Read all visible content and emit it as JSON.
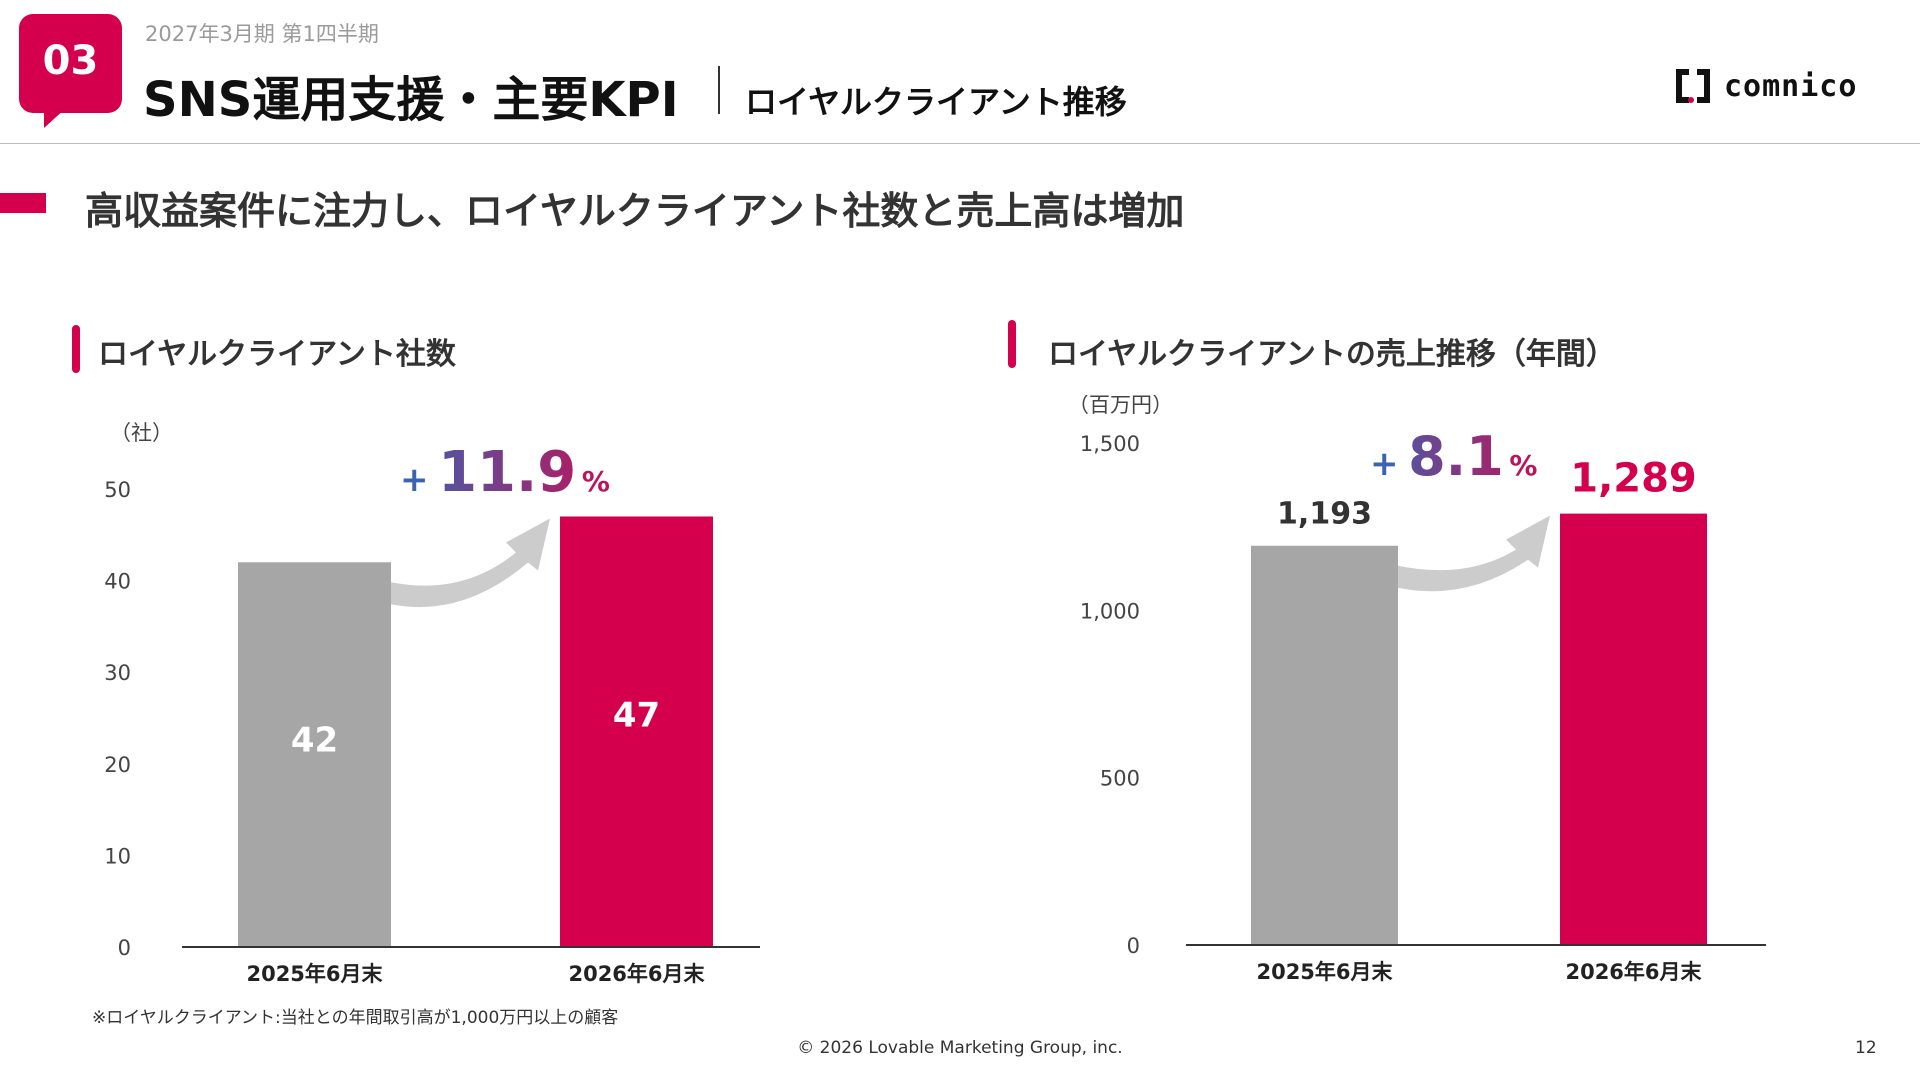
{
  "header": {
    "section_number": "03",
    "period": "2027年3月期 第1四半期",
    "title": "SNS運用支援・主要KPI",
    "subtitle": "ロイヤルクライアント推移",
    "logo_text": "comnico"
  },
  "headline": "高収益案件に注力し、ロイヤルクライアント社数と売上高は増加",
  "colors": {
    "accent": "#d4004d",
    "gray_bar": "#a6a6a6",
    "arrow": "#cccccc",
    "growth_start": "#3b63b0",
    "growth_end": "#c0125a"
  },
  "chart_data": [
    {
      "type": "bar",
      "title": "ロイヤルクライアント社数",
      "unit_label": "（社）",
      "categories": [
        "2025年6月末",
        "2026年6月末"
      ],
      "values": [
        42,
        47
      ],
      "value_labels": [
        "42",
        "47"
      ],
      "ylim": [
        0,
        50
      ],
      "yticks": [
        0,
        10,
        20,
        30,
        40,
        50
      ],
      "ytick_labels": [
        "0",
        "10",
        "20",
        "30",
        "40",
        "50"
      ],
      "growth": {
        "sign": "+",
        "number": "11.9",
        "unit": "%"
      },
      "bar_colors": [
        "#a6a6a6",
        "#d4004d"
      ],
      "labels_inside": true,
      "grid": false
    },
    {
      "type": "bar",
      "title": "ロイヤルクライアントの売上推移（年間）",
      "unit_label": "（百万円）",
      "categories": [
        "2025年6月末",
        "2026年6月末"
      ],
      "values": [
        1193,
        1289
      ],
      "value_labels": [
        "1,193",
        "1,289"
      ],
      "ylim": [
        0,
        1500
      ],
      "yticks": [
        0,
        500,
        1000,
        1500
      ],
      "ytick_labels": [
        "0",
        "500",
        "1,000",
        "1,500"
      ],
      "growth": {
        "sign": "+",
        "number": "8.1",
        "unit": "%"
      },
      "bar_colors": [
        "#a6a6a6",
        "#d4004d"
      ],
      "labels_inside": false,
      "grid": false
    }
  ],
  "footnote": "※ロイヤルクライアント:当社との年間取引高が1,000万円以上の顧客",
  "footer": {
    "copyright": "© 2026 Lovable Marketing Group, inc.",
    "page_number": "12"
  }
}
